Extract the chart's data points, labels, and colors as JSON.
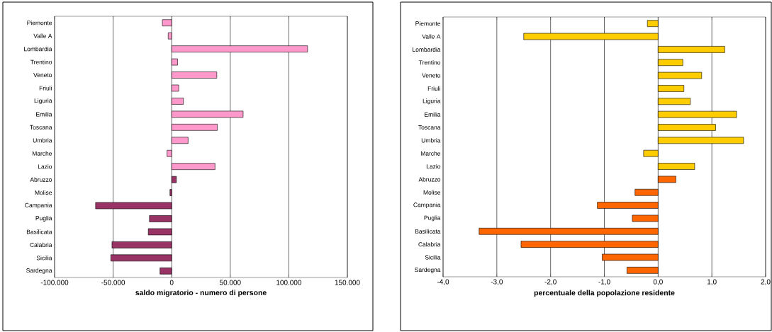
{
  "chart_data": [
    {
      "type": "bar",
      "orientation": "horizontal",
      "xlabel": "saldo migratorio - numero di persone",
      "grid": "x",
      "categories": [
        "Piemonte",
        "Valle A",
        "Lombardia",
        "Trentino",
        "Veneto",
        "Friuli",
        "Liguria",
        "Emilia",
        "Toscana",
        "Umbria",
        "Marche",
        "Lazio",
        "Abruzzo",
        "Molise",
        "Campania",
        "Puglia",
        "Basilicata",
        "Calabria",
        "Sicilia",
        "Sardegna"
      ],
      "values": [
        -8000,
        -3000,
        116000,
        5000,
        38500,
        6000,
        10000,
        61000,
        39000,
        14000,
        -4000,
        37000,
        4000,
        -1500,
        -65000,
        -19000,
        -20000,
        -51000,
        -52000,
        -10000
      ],
      "colors": [
        "#ff99cc",
        "#ff99cc",
        "#ff99cc",
        "#ff99cc",
        "#ff99cc",
        "#ff99cc",
        "#ff99cc",
        "#ff99cc",
        "#ff99cc",
        "#ff99cc",
        "#ff99cc",
        "#ff99cc",
        "#993366",
        "#993366",
        "#993366",
        "#993366",
        "#993366",
        "#993366",
        "#993366",
        "#993366"
      ],
      "xlim": [
        -100000,
        150000
      ],
      "xticks": [
        {
          "value": -100000,
          "label": "-100.000"
        },
        {
          "value": -50000,
          "label": "-50.000"
        },
        0,
        {
          "value": 50000,
          "label": "50.000"
        },
        {
          "value": 100000,
          "label": "100.000"
        },
        {
          "value": 150000,
          "label": "150.000"
        }
      ]
    },
    {
      "type": "bar",
      "orientation": "horizontal",
      "xlabel": "percentuale della popolazione residente",
      "grid": "x",
      "categories": [
        "Piemonte",
        "Valle A",
        "Lombardia",
        "Trentino",
        "Veneto",
        "Friuli",
        "Liguria",
        "Emilia",
        "Toscana",
        "Umbria",
        "Marche",
        "Lazio",
        "Abruzzo",
        "Molise",
        "Campania",
        "Puglia",
        "Basilicata",
        "Calabria",
        "Sicilia",
        "Sardegna"
      ],
      "values": [
        -0.2,
        -2.5,
        1.24,
        0.46,
        0.81,
        0.48,
        0.6,
        1.46,
        1.07,
        1.59,
        -0.27,
        0.68,
        0.33,
        -0.43,
        -1.13,
        -0.48,
        -3.33,
        -2.55,
        -1.04,
        -0.58
      ],
      "colors": [
        "#ffcc00",
        "#ffcc00",
        "#ffcc00",
        "#ffcc00",
        "#ffcc00",
        "#ffcc00",
        "#ffcc00",
        "#ffcc00",
        "#ffcc00",
        "#ffcc00",
        "#ffcc00",
        "#ffcc00",
        "#ff6600",
        "#ff6600",
        "#ff6600",
        "#ff6600",
        "#ff6600",
        "#ff6600",
        "#ff6600",
        "#ff6600"
      ],
      "xlim": [
        -4,
        2
      ],
      "xticks": [
        {
          "value": -4,
          "label": "-4,0"
        },
        {
          "value": -3,
          "label": "-3,0"
        },
        {
          "value": -2,
          "label": "-2,0"
        },
        {
          "value": -1,
          "label": "-1,0"
        },
        {
          "value": 0,
          "label": "0,0"
        },
        {
          "value": 1,
          "label": "1,0"
        },
        {
          "value": 2,
          "label": "2,0"
        }
      ]
    }
  ]
}
